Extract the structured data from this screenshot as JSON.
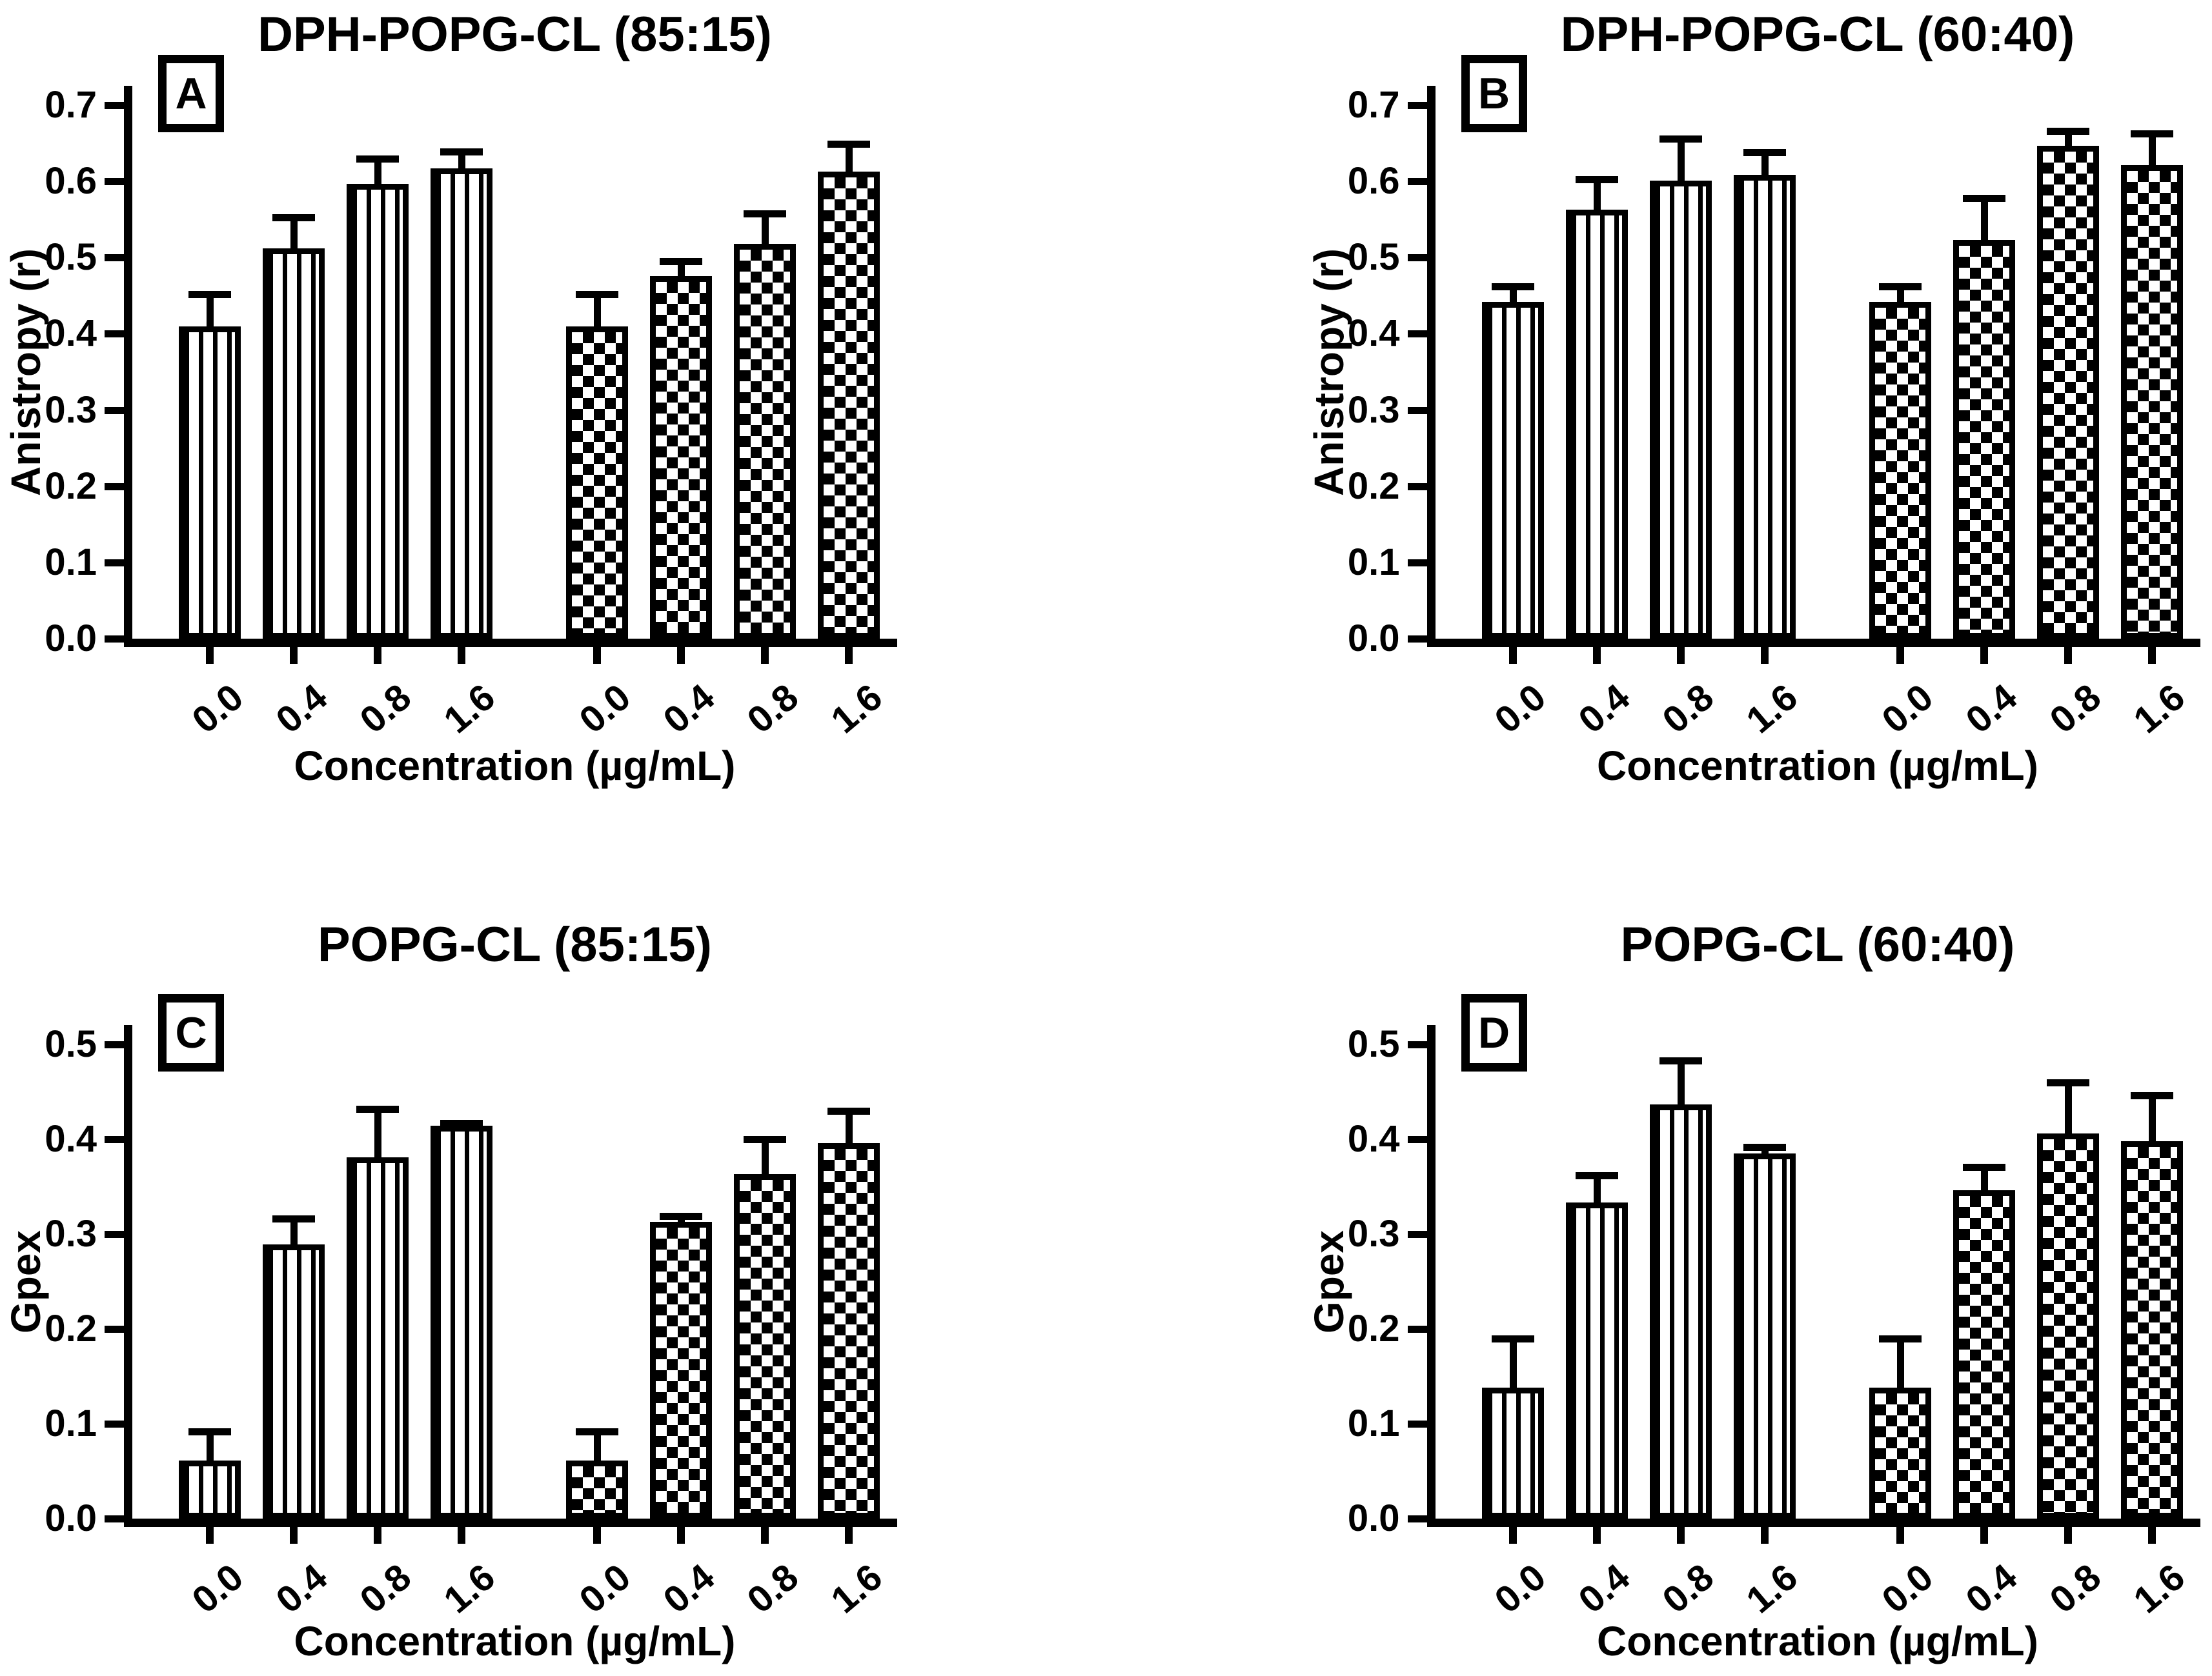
{
  "figure": {
    "background": "#ffffff",
    "ink_color": "#000000",
    "panel_letters": [
      "A",
      "B",
      "C",
      "D"
    ],
    "bar_patterns": [
      "vertical-stripes",
      "checkerboard"
    ]
  },
  "chart_data": [
    {
      "type": "bar",
      "letter": "A",
      "title": "DPH-POPG-CL (85:15)",
      "xlabel": "Concentration (µg/mL)",
      "ylabel": "Anistropy (r)",
      "ylim": [
        0.0,
        0.7
      ],
      "yticks": [
        "0.0",
        "0.1",
        "0.2",
        "0.3",
        "0.4",
        "0.5",
        "0.6",
        "0.7"
      ],
      "grid": false,
      "legend": "none (series distinguished by fill pattern)",
      "categories": [
        "0.0",
        "0.4",
        "0.8",
        "1.6",
        "0.0",
        "0.4",
        "0.8",
        "1.6"
      ],
      "series": [
        {
          "name": "striped-bars",
          "pattern": "stripes",
          "x": [
            "0.0",
            "0.4",
            "0.8",
            "1.6"
          ],
          "values": [
            0.41,
            0.512,
            0.597,
            0.617
          ],
          "errors": [
            0.042,
            0.041,
            0.033,
            0.022
          ]
        },
        {
          "name": "checkered-bars",
          "pattern": "checker",
          "x": [
            "0.0",
            "0.4",
            "0.8",
            "1.6"
          ],
          "values": [
            0.41,
            0.476,
            0.518,
            0.613
          ],
          "errors": [
            0.042,
            0.019,
            0.04,
            0.036
          ]
        }
      ]
    },
    {
      "type": "bar",
      "letter": "B",
      "title": "DPH-POPG-CL (60:40)",
      "xlabel": "Concentration (µg/mL)",
      "ylabel": "Anistropy (r)",
      "ylim": [
        0.0,
        0.7
      ],
      "yticks": [
        "0.0",
        "0.1",
        "0.2",
        "0.3",
        "0.4",
        "0.5",
        "0.6",
        "0.7"
      ],
      "grid": false,
      "legend": "none (series distinguished by fill pattern)",
      "categories": [
        "0.0",
        "0.4",
        "0.8",
        "1.6",
        "0.0",
        "0.4",
        "0.8",
        "1.6"
      ],
      "series": [
        {
          "name": "striped-bars",
          "pattern": "stripes",
          "x": [
            "0.0",
            "0.4",
            "0.8",
            "1.6"
          ],
          "values": [
            0.442,
            0.563,
            0.601,
            0.609
          ],
          "errors": [
            0.02,
            0.04,
            0.055,
            0.029
          ]
        },
        {
          "name": "checkered-bars",
          "pattern": "checker",
          "x": [
            "0.0",
            "0.4",
            "0.8",
            "1.6"
          ],
          "values": [
            0.442,
            0.523,
            0.647,
            0.621
          ],
          "errors": [
            0.02,
            0.055,
            0.019,
            0.042
          ]
        }
      ]
    },
    {
      "type": "bar",
      "letter": "C",
      "title": "POPG-CL (85:15)",
      "xlabel": "Concentration (µg/mL)",
      "ylabel": "Gpex",
      "ylim": [
        0.0,
        0.5
      ],
      "yticks": [
        "0.0",
        "0.1",
        "0.2",
        "0.3",
        "0.4",
        "0.5"
      ],
      "grid": false,
      "legend": "none (series distinguished by fill pattern)",
      "categories": [
        "0.0",
        "0.4",
        "0.8",
        "1.6",
        "0.0",
        "0.4",
        "0.8",
        "1.6"
      ],
      "series": [
        {
          "name": "striped-bars",
          "pattern": "stripes",
          "x": [
            "0.0",
            "0.4",
            "0.8",
            "1.6"
          ],
          "values": [
            0.061,
            0.289,
            0.381,
            0.414
          ],
          "errors": [
            0.031,
            0.027,
            0.051,
            0.003
          ]
        },
        {
          "name": "checkered-bars",
          "pattern": "checker",
          "x": [
            "0.0",
            "0.4",
            "0.8",
            "1.6"
          ],
          "values": [
            0.061,
            0.313,
            0.363,
            0.396
          ],
          "errors": [
            0.031,
            0.006,
            0.037,
            0.034
          ]
        }
      ]
    },
    {
      "type": "bar",
      "letter": "D",
      "title": "POPG-CL (60:40)",
      "xlabel": "Concentration (µg/mL)",
      "ylabel": "Gpex",
      "ylim": [
        0.0,
        0.5
      ],
      "yticks": [
        "0.0",
        "0.1",
        "0.2",
        "0.3",
        "0.4",
        "0.5"
      ],
      "grid": false,
      "legend": "none (series distinguished by fill pattern)",
      "categories": [
        "0.0",
        "0.4",
        "0.8",
        "1.6",
        "0.0",
        "0.4",
        "0.8",
        "1.6"
      ],
      "series": [
        {
          "name": "striped-bars",
          "pattern": "stripes",
          "x": [
            "0.0",
            "0.4",
            "0.8",
            "1.6"
          ],
          "values": [
            0.138,
            0.333,
            0.437,
            0.385
          ],
          "errors": [
            0.052,
            0.029,
            0.046,
            0.007
          ]
        },
        {
          "name": "checkered-bars",
          "pattern": "checker",
          "x": [
            "0.0",
            "0.4",
            "0.8",
            "1.6"
          ],
          "values": [
            0.138,
            0.346,
            0.406,
            0.398
          ],
          "errors": [
            0.052,
            0.025,
            0.054,
            0.048
          ]
        }
      ]
    }
  ]
}
